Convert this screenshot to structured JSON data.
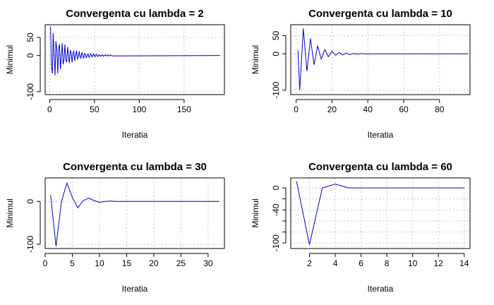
{
  "chart_data": [
    {
      "type": "line",
      "title": "Convergenta cu lambda = 2",
      "xlabel": "Iteratia",
      "ylabel": "Minimul",
      "xlim": [
        -5,
        195
      ],
      "ylim": [
        -108,
        85
      ],
      "xticks": [
        0,
        50,
        100,
        150
      ],
      "yticks": [
        -100,
        0,
        50
      ],
      "grid": true,
      "line_color": "#0000cd",
      "oscillation": {
        "amplitude": 80,
        "decay": 0.06,
        "period": 3.2
      },
      "series": [
        {
          "x_start": 1,
          "x_end": 190
        }
      ]
    },
    {
      "type": "line",
      "title": "Convergenta cu lambda = 10",
      "xlabel": "Iteratia",
      "ylabel": "Minimul",
      "xlim": [
        -3,
        97
      ],
      "ylim": [
        -112,
        80
      ],
      "xticks": [
        0,
        20,
        40,
        60,
        80
      ],
      "yticks": [
        -100,
        0,
        50
      ],
      "grid": true,
      "line_color": "#0000cd",
      "series": [
        {
          "x": [
            1,
            2,
            4,
            6,
            8,
            10,
            12,
            14,
            16,
            18,
            20,
            22,
            24,
            26,
            28,
            30,
            32,
            34,
            36,
            38,
            40,
            42,
            96
          ],
          "y": [
            10,
            -100,
            70,
            -48,
            42,
            -30,
            22,
            -14,
            12,
            -8,
            7,
            -4,
            4,
            -3,
            2,
            -2,
            1,
            -1,
            1,
            0,
            0,
            0,
            0
          ]
        }
      ]
    },
    {
      "type": "line",
      "title": "Convergenta cu lambda = 30",
      "xlabel": "Iteratia",
      "ylabel": "Minimul",
      "xlim": [
        0,
        33
      ],
      "ylim": [
        -110,
        55
      ],
      "xticks": [
        0,
        5,
        10,
        15,
        20,
        25,
        30
      ],
      "yticks": [
        -100,
        0
      ],
      "grid": true,
      "line_color": "#0000cd",
      "series": [
        {
          "x": [
            1,
            2,
            3,
            4,
            5,
            6,
            7,
            8,
            9,
            10,
            11,
            12,
            13,
            32
          ],
          "y": [
            15,
            -105,
            0,
            43,
            10,
            -15,
            2,
            8,
            2,
            -2,
            0,
            1,
            0,
            0
          ]
        }
      ]
    },
    {
      "type": "line",
      "title": "Convergenta cu lambda = 60",
      "xlabel": "Iteratia",
      "ylabel": "Minimul",
      "xlim": [
        0.55,
        14.45
      ],
      "ylim": [
        -110,
        18
      ],
      "xticks": [
        2,
        4,
        6,
        8,
        10,
        12,
        14
      ],
      "yticks": [
        -100,
        -80,
        -60,
        -40,
        -20,
        0
      ],
      "ytick_labels": [
        "-100",
        "",
        "",
        "-40",
        "",
        "0"
      ],
      "grid": true,
      "line_color": "#0000cd",
      "series": [
        {
          "x": [
            1,
            2,
            3,
            4,
            5,
            6,
            14
          ],
          "y": [
            12,
            -103,
            0,
            7,
            0,
            0,
            0
          ]
        }
      ]
    }
  ]
}
